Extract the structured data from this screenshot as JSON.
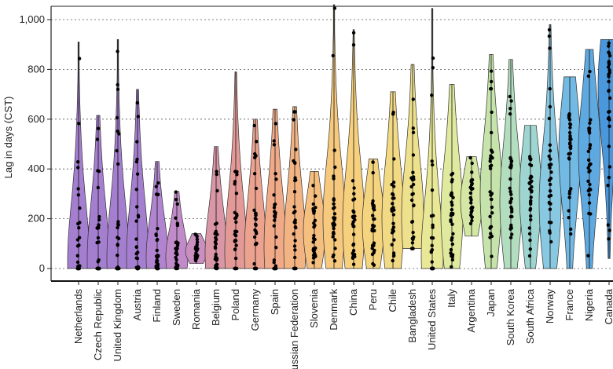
{
  "chart_data": {
    "type": "violin",
    "ylabel": "Lag in days (CST)",
    "xlabel": "",
    "title": "",
    "ylim": [
      0,
      1060
    ],
    "yticks": [
      0,
      200,
      400,
      600,
      800,
      1000
    ],
    "ytick_labels": [
      "0",
      "200",
      "400",
      "600",
      "800",
      "1,000"
    ],
    "grid": "horizontal-dotted",
    "categories": [
      {
        "name": "Netherlands",
        "color": "#a57fcf",
        "peak": 30,
        "min": 0,
        "max": 910
      },
      {
        "name": "Czech Republic",
        "color": "#a57fcf",
        "peak": 35,
        "min": 0,
        "max": 615
      },
      {
        "name": "United Kingdom",
        "color": "#a57fcf",
        "peak": 40,
        "min": 0,
        "max": 920
      },
      {
        "name": "Austria",
        "color": "#a57fcf",
        "peak": 45,
        "min": 0,
        "max": 720
      },
      {
        "name": "Finland",
        "color": "#b084cf",
        "peak": 45,
        "min": 0,
        "max": 430
      },
      {
        "name": "Sweden",
        "color": "#c18bc9",
        "peak": 45,
        "min": 0,
        "max": 310
      },
      {
        "name": "Romania",
        "color": "#c98fc1",
        "peak": 70,
        "min": 20,
        "max": 140
      },
      {
        "name": "Belgium",
        "color": "#d996a7",
        "peak": 60,
        "min": 0,
        "max": 490
      },
      {
        "name": "Poland",
        "color": "#e39a97",
        "peak": 70,
        "min": 0,
        "max": 790
      },
      {
        "name": "Germany",
        "color": "#eba28e",
        "peak": 70,
        "min": 0,
        "max": 600
      },
      {
        "name": "Spain",
        "color": "#f0aa88",
        "peak": 90,
        "min": 0,
        "max": 640
      },
      {
        "name": "Russian Federation",
        "color": "#f3b483",
        "peak": 90,
        "min": 0,
        "max": 650
      },
      {
        "name": "Slovenia",
        "color": "#f5bf80",
        "peak": 150,
        "min": 0,
        "max": 390
      },
      {
        "name": "Denmark",
        "color": "#f6c97e",
        "peak": 200,
        "min": 0,
        "max": 1060
      },
      {
        "name": "China",
        "color": "#f6d07d",
        "peak": 180,
        "min": 0,
        "max": 960
      },
      {
        "name": "Peru",
        "color": "#f5d47f",
        "peak": 180,
        "min": 0,
        "max": 440
      },
      {
        "name": "Chile",
        "color": "#f2d984",
        "peak": 200,
        "min": 0,
        "max": 710
      },
      {
        "name": "Bangladesh",
        "color": "#eee18d",
        "peak": 210,
        "min": 80,
        "max": 820
      },
      {
        "name": "United States",
        "color": "#e9e897",
        "peak": 50,
        "min": 0,
        "max": 1045
      },
      {
        "name": "Italy",
        "color": "#e0ea9e",
        "peak": 220,
        "min": 0,
        "max": 740
      },
      {
        "name": "Argentina",
        "color": "#d4e7a4",
        "peak": 270,
        "min": 130,
        "max": 450
      },
      {
        "name": "Japan",
        "color": "#c5e3aa",
        "peak": 300,
        "min": 0,
        "max": 860
      },
      {
        "name": "South Korea",
        "color": "#b3ddbf",
        "peak": 270,
        "min": 0,
        "max": 840
      },
      {
        "name": "South Africa",
        "color": "#9fd5d0",
        "peak": 300,
        "min": 0,
        "max": 575
      },
      {
        "name": "Norway",
        "color": "#88c8e0",
        "peak": 260,
        "min": 0,
        "max": 980
      },
      {
        "name": "France",
        "color": "#72b9e4",
        "peak": 470,
        "min": 0,
        "max": 770
      },
      {
        "name": "Nigeria",
        "color": "#5fa9e1",
        "peak": 470,
        "min": 0,
        "max": 880
      },
      {
        "name": "Canada",
        "color": "#4a97dc",
        "peak": 730,
        "min": 40,
        "max": 920
      }
    ]
  }
}
